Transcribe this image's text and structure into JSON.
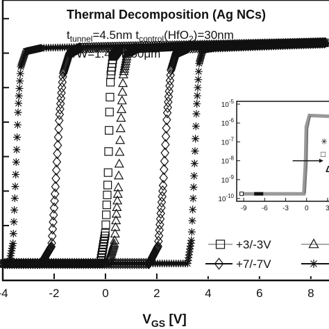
{
  "chart_data": {
    "type": "line",
    "title": "Thermal Decomposition (Ag NCs)",
    "annotations": [
      {
        "parts": [
          {
            "t": "t"
          },
          {
            "t": "tunnel",
            "sub": true
          },
          {
            "t": "=4.5nm  t"
          },
          {
            "t": "control",
            "sub": true
          },
          {
            "t": "(HfO"
          },
          {
            "t": "2",
            "sub": true
          },
          {
            "t": ")=30nm"
          }
        ]
      },
      {
        "parts": [
          {
            "t": "L/W=1.4μm/50μm"
          }
        ]
      }
    ],
    "xlabel_main": "V",
    "xlabel_sub": "GS",
    "xlabel_unit": " [V]",
    "x_ticks": [
      "-4",
      "-2",
      "0",
      "2",
      "4",
      "6",
      "8"
    ],
    "xlim": [
      -4,
      8.6
    ],
    "y_scale": "log",
    "y_decades_visible": [
      -12,
      -5
    ],
    "legend_entries": [
      "+3/-3V",
      "+7/-7V"
    ],
    "legend_placement": "bottom-right",
    "series": [
      {
        "name": "+7/-7V",
        "marker": "star",
        "x": [
          -4,
          -3.75,
          -3.6,
          -3.5,
          -3.4,
          -3.3,
          -3.1,
          -2.5,
          0,
          8.6
        ],
        "y_log": [
          -12.1,
          -12.1,
          -11.5,
          -9.6,
          -7.6,
          -6.4,
          -5.95,
          -5.85,
          -5.8,
          -5.7
        ]
      },
      {
        "name": "",
        "marker": "diamond",
        "x": [
          -4,
          -2.5,
          -2.1,
          -1.95,
          -1.8,
          -1.65,
          -1.4,
          -1.0,
          2,
          8.6
        ],
        "y_log": [
          -12.1,
          -12.1,
          -11.6,
          -9.9,
          -7.9,
          -6.6,
          -6.0,
          -5.85,
          -5.8,
          -5.7
        ]
      },
      {
        "name": "+3/-3V",
        "marker": "square",
        "x": [
          -4,
          -0.2,
          0.0,
          0.1,
          0.15,
          0.2,
          0.3,
          0.5,
          3,
          8.6
        ],
        "y_log": [
          -12.1,
          -12.1,
          -11.2,
          -9.6,
          -7.9,
          -6.7,
          -6.1,
          -5.9,
          -5.8,
          -5.7
        ]
      },
      {
        "name": "",
        "marker": "triangle",
        "x": [
          -4,
          0.1,
          0.35,
          0.5,
          0.6,
          0.7,
          0.85,
          1.2,
          3.5,
          8.6
        ],
        "y_log": [
          -12.1,
          -12.1,
          -11.5,
          -9.9,
          -8.0,
          -6.6,
          -6.0,
          -5.85,
          -5.8,
          -5.7
        ]
      },
      {
        "name": "",
        "marker": "diamond",
        "x": [
          -4,
          1.7,
          2.05,
          2.25,
          2.4,
          2.55,
          2.75,
          3.2,
          5,
          8.6
        ],
        "y_log": [
          -12.1,
          -12.1,
          -11.6,
          -9.8,
          -7.8,
          -6.5,
          -6.0,
          -5.85,
          -5.8,
          -5.7
        ]
      },
      {
        "name": "",
        "marker": "star",
        "x": [
          -4,
          3.2,
          3.35,
          3.45,
          3.55,
          3.65,
          3.8,
          4.2,
          6,
          8.6
        ],
        "y_log": [
          -12.1,
          -12.1,
          -11.4,
          -9.6,
          -7.6,
          -6.3,
          -5.9,
          -5.85,
          -5.8,
          -5.7
        ]
      }
    ],
    "inset": {
      "y_ticks": [
        {
          "base": "10",
          "exp": "-5"
        },
        {
          "base": "10",
          "exp": "-6"
        },
        {
          "base": "10",
          "exp": "-7"
        },
        {
          "base": "10",
          "exp": "-8"
        },
        {
          "base": "10",
          "exp": "-9"
        },
        {
          "base": "10",
          "exp": "-10"
        }
      ],
      "x_ticks": [
        "-9",
        "-6",
        "-3",
        "0",
        "3"
      ],
      "xlim": [
        -10,
        3.6
      ],
      "label": "ΔV",
      "legend_glyphs": [
        "✳",
        "□"
      ]
    }
  }
}
